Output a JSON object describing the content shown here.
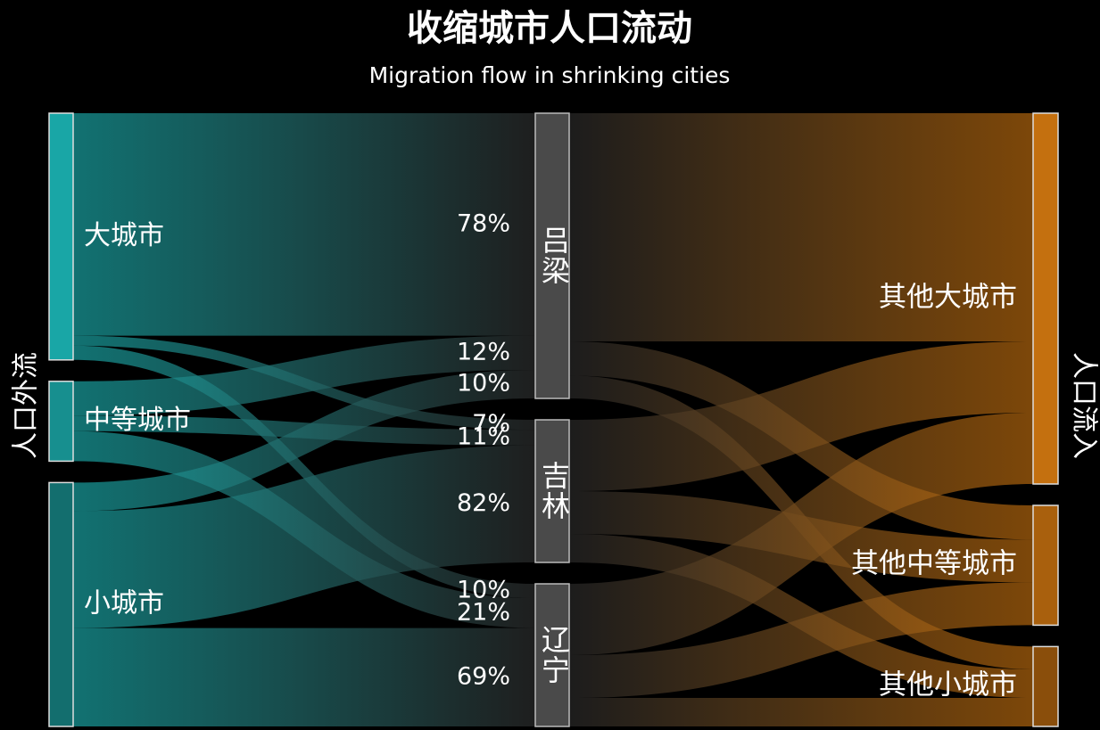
{
  "chart_data": {
    "type": "sankey",
    "title": "收缩城市人口流动",
    "subtitle": "Migration flow in shrinking cities",
    "source_label": "人口外流",
    "target_label": "人口流入",
    "sources": [
      {
        "name": "大城市",
        "color": "#19a6a6"
      },
      {
        "name": "中等城市",
        "color": "#178f8f"
      },
      {
        "name": "小城市",
        "color": "#136e6e"
      }
    ],
    "hubs": [
      {
        "name": "吕梁",
        "share": 50,
        "inflows": [
          78,
          12,
          10
        ],
        "inflow_labels": [
          "78%",
          "12%",
          "10%"
        ],
        "outflows": [
          80,
          12,
          8
        ]
      },
      {
        "name": "吉林",
        "share": 25,
        "inflows": [
          7,
          11,
          82
        ],
        "inflow_labels": [
          "7%",
          "11%",
          "82%"
        ],
        "outflows": [
          50,
          30,
          20
        ]
      },
      {
        "name": "辽宁",
        "share": 25,
        "inflows": [
          10,
          21,
          69
        ],
        "inflow_labels": [
          "10%",
          "21%",
          "69%"
        ],
        "outflows": [
          50,
          30,
          20
        ]
      }
    ],
    "hub_color": "#4a4a4a",
    "targets": [
      {
        "name": "其他大城市",
        "color": "#c4700f"
      },
      {
        "name": "其他中等城市",
        "color": "#a9600d"
      },
      {
        "name": "其他小城市",
        "color": "#8a4e0b"
      }
    ]
  }
}
